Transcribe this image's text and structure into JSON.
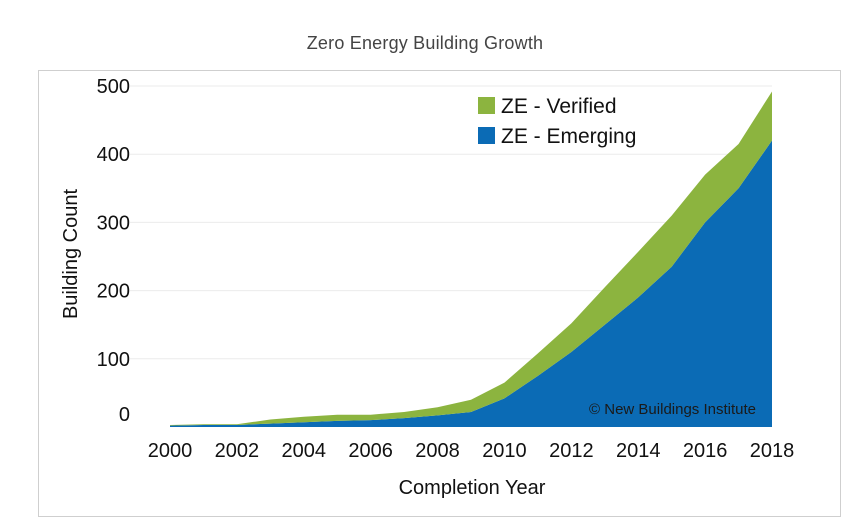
{
  "page": {
    "title": "Zero Energy Building Growth"
  },
  "chart_data": {
    "type": "area",
    "stacked": true,
    "title": "Zero Energy Building Growth",
    "xlabel": "Completion Year",
    "ylabel": "Building Count",
    "x": [
      2000,
      2001,
      2002,
      2003,
      2004,
      2005,
      2006,
      2007,
      2008,
      2009,
      2010,
      2011,
      2012,
      2013,
      2014,
      2015,
      2016,
      2017,
      2018
    ],
    "xticks": [
      "2000",
      "2002",
      "2004",
      "2006",
      "2008",
      "2010",
      "2012",
      "2014",
      "2016",
      "2018"
    ],
    "yticks": [
      "0",
      "100",
      "200",
      "300",
      "400",
      "500"
    ],
    "ylim": [
      0,
      500
    ],
    "series": [
      {
        "name": "ZE - Emerging",
        "color": "#0b6bb5",
        "values": [
          2,
          3,
          3,
          5,
          7,
          9,
          10,
          13,
          17,
          22,
          42,
          75,
          110,
          150,
          190,
          235,
          300,
          350,
          420
        ]
      },
      {
        "name": "ZE - Verified",
        "color": "#8cb43f",
        "values": [
          1,
          1,
          1,
          6,
          8,
          9,
          8,
          9,
          12,
          18,
          23,
          33,
          42,
          55,
          67,
          75,
          70,
          65,
          72
        ]
      }
    ],
    "legend": {
      "position": "top-right"
    },
    "grid": {
      "y": true,
      "x": false
    },
    "annotation": "© New Buildings Institute"
  }
}
